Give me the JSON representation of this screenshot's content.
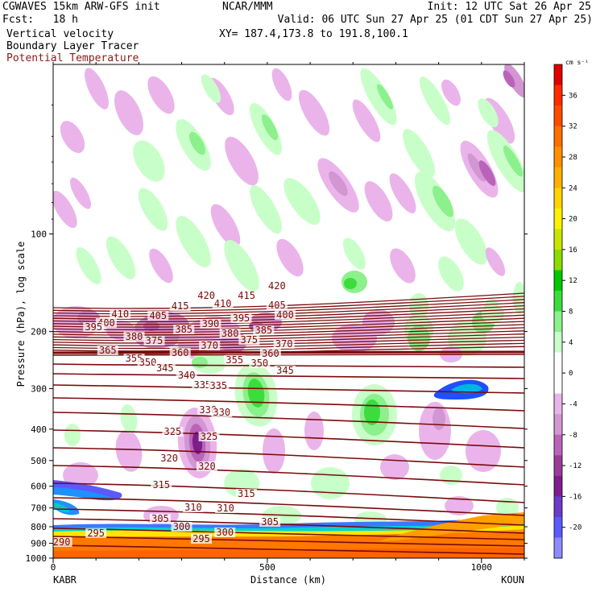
{
  "header": {
    "model": "CGWAVES 15km ARW-GFS init",
    "org": "NCAR/MMM",
    "init": "Init: 12 UTC Sat 26 Apr 25",
    "fcst": "Fcst:   18 h",
    "valid": "Valid: 06 UTC Sun 27 Apr 25 (01 CDT Sun 27 Apr 25)",
    "field1": "Vertical velocity",
    "field2": "Boundary Layer Tracer",
    "field3": "Potential Temperature",
    "xy": "XY= 187.4,173.8 to 191.8,100.1"
  },
  "colors": {
    "theta": "#7a0a0a",
    "positive": [
      "#ffffff",
      "#c8ffc8",
      "#8cf08c",
      "#3cdc3c",
      "#00c800",
      "#ffff00",
      "#ffc800",
      "#ff9600",
      "#ff6400",
      "#ff3200",
      "#e00000"
    ],
    "negative": [
      "#eab4ea",
      "#d296d2",
      "#b964b9",
      "#9b3c9b",
      "#7d1e8c",
      "#6a3cc8",
      "#5a5aff",
      "#8c8cff"
    ]
  },
  "chart_data": {
    "type": "heatmap",
    "xlabel": "Distance (km)",
    "ylabel": "Pressure (hPa), log scale",
    "x_ticks": [
      0,
      500,
      1000
    ],
    "xlim": [
      0,
      1100
    ],
    "y_ticks": [
      100,
      200,
      300,
      400,
      500,
      600,
      700,
      800,
      900,
      1000
    ],
    "ylim": [
      1000,
      30
    ],
    "y_scale": "log",
    "left_station": "KABR",
    "right_station": "KOUN",
    "colorbar_unit": "cm s⁻¹",
    "colorbar_ticks": [
      36,
      32,
      28,
      24,
      20,
      16,
      12,
      8,
      4,
      0,
      -4,
      -8,
      -12,
      -16,
      -20
    ],
    "theta_label_groups": [
      {
        "value": "420",
        "positions": [
          [
            715,
            370
          ],
          [
            1045,
            358
          ]
        ]
      },
      {
        "value": "415",
        "positions": [
          [
            593,
            383
          ],
          [
            903,
            370
          ]
        ]
      },
      {
        "value": "410",
        "positions": [
          [
            313,
            393
          ],
          [
            792,
            380
          ]
        ]
      },
      {
        "value": "405",
        "positions": [
          [
            1045,
            382
          ],
          [
            490,
            395
          ]
        ]
      },
      {
        "value": "400",
        "positions": [
          [
            248,
            404
          ],
          [
            1083,
            394
          ]
        ]
      },
      {
        "value": "395",
        "positions": [
          [
            189,
            409
          ],
          [
            878,
            398
          ]
        ]
      },
      {
        "value": "390",
        "positions": [
          [
            735,
            405
          ]
        ]
      },
      {
        "value": "385",
        "positions": [
          [
            610,
            412
          ],
          [
            983,
            413
          ]
        ]
      },
      {
        "value": "380",
        "positions": [
          [
            378,
            421
          ],
          [
            826,
            417
          ]
        ]
      },
      {
        "value": "375",
        "positions": [
          [
            472,
            426
          ],
          [
            915,
            425
          ]
        ]
      },
      {
        "value": "370",
        "positions": [
          [
            730,
            432
          ],
          [
            1078,
            430
          ]
        ]
      },
      {
        "value": "365",
        "positions": [
          [
            255,
            438
          ]
        ]
      },
      {
        "value": "360",
        "positions": [
          [
            593,
            441
          ],
          [
            1015,
            442
          ]
        ]
      },
      {
        "value": "355",
        "positions": [
          [
            378,
            448
          ],
          [
            847,
            450
          ]
        ]
      },
      {
        "value": "350",
        "positions": [
          [
            442,
            453
          ],
          [
            964,
            454
          ]
        ]
      },
      {
        "value": "345",
        "positions": [
          [
            522,
            460
          ],
          [
            1083,
            463
          ]
        ]
      },
      {
        "value": "340",
        "positions": [
          [
            623,
            469
          ]
        ]
      },
      {
        "value": "335",
        "positions": [
          [
            697,
            481
          ],
          [
            772,
            482
          ]
        ]
      },
      {
        "value": "330",
        "positions": [
          [
            723,
            512
          ],
          [
            787,
            515
          ]
        ]
      },
      {
        "value": "325",
        "positions": [
          [
            558,
            539
          ],
          [
            728,
            545
          ]
        ]
      },
      {
        "value": "320",
        "positions": [
          [
            542,
            572
          ],
          [
            718,
            582
          ]
        ]
      },
      {
        "value": "315",
        "positions": [
          [
            505,
            605
          ],
          [
            902,
            616
          ]
        ]
      },
      {
        "value": "310",
        "positions": [
          [
            654,
            633
          ],
          [
            805,
            634
          ]
        ]
      },
      {
        "value": "305",
        "positions": [
          [
            500,
            647
          ],
          [
            1012,
            651
          ]
        ]
      },
      {
        "value": "300",
        "positions": [
          [
            600,
            657
          ],
          [
            802,
            664
          ]
        ]
      },
      {
        "value": "295",
        "positions": [
          [
            200,
            665
          ],
          [
            692,
            672
          ]
        ]
      },
      {
        "value": "290",
        "positions": [
          [
            40,
            676
          ]
        ]
      }
    ]
  }
}
